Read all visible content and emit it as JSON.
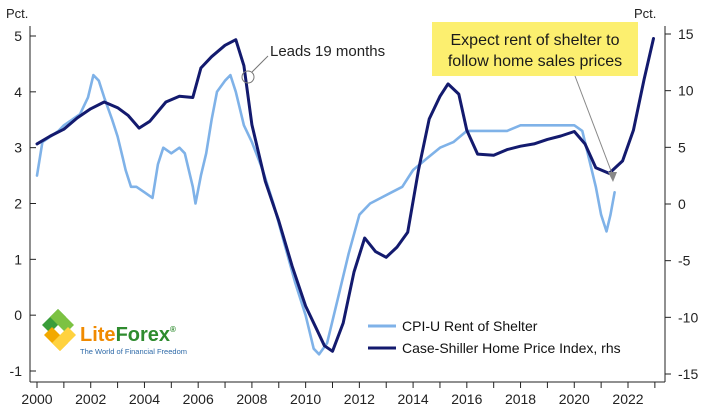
{
  "chart_data": {
    "type": "line",
    "left_axis": {
      "unit_label": "Pct.",
      "range": [
        -1.1,
        5.2
      ],
      "ticks": [
        -1,
        0,
        1,
        2,
        3,
        4,
        5
      ]
    },
    "right_axis": {
      "unit_label": "Pct.",
      "range": [
        -15.5,
        16
      ],
      "ticks": [
        -15,
        -10,
        -5,
        0,
        5,
        10,
        15
      ]
    },
    "x_axis": {
      "range": [
        2000,
        2023
      ],
      "ticks": [
        2000,
        2002,
        2004,
        2006,
        2008,
        2010,
        2012,
        2014,
        2016,
        2018,
        2020,
        2022
      ]
    },
    "series": [
      {
        "name": "CPI-U Rent of Shelter",
        "axis": "left",
        "color": "#7fb2e8",
        "points": [
          [
            2000.0,
            2.5
          ],
          [
            2000.2,
            3.1
          ],
          [
            2000.5,
            3.2
          ],
          [
            2000.8,
            3.3
          ],
          [
            2001.0,
            3.4
          ],
          [
            2001.3,
            3.5
          ],
          [
            2001.6,
            3.6
          ],
          [
            2001.9,
            3.9
          ],
          [
            2002.0,
            4.1
          ],
          [
            2002.1,
            4.3
          ],
          [
            2002.3,
            4.2
          ],
          [
            2002.5,
            3.9
          ],
          [
            2002.8,
            3.5
          ],
          [
            2003.0,
            3.2
          ],
          [
            2003.2,
            2.8
          ],
          [
            2003.3,
            2.6
          ],
          [
            2003.5,
            2.3
          ],
          [
            2003.7,
            2.3
          ],
          [
            2004.0,
            2.2
          ],
          [
            2004.3,
            2.1
          ],
          [
            2004.5,
            2.7
          ],
          [
            2004.7,
            3.0
          ],
          [
            2005.0,
            2.9
          ],
          [
            2005.3,
            3.0
          ],
          [
            2005.5,
            2.9
          ],
          [
            2005.8,
            2.3
          ],
          [
            2005.9,
            2.0
          ],
          [
            2006.1,
            2.5
          ],
          [
            2006.3,
            2.9
          ],
          [
            2006.5,
            3.5
          ],
          [
            2006.7,
            4.0
          ],
          [
            2007.0,
            4.2
          ],
          [
            2007.2,
            4.3
          ],
          [
            2007.4,
            4.0
          ],
          [
            2007.7,
            3.4
          ],
          [
            2008.0,
            3.1
          ],
          [
            2008.4,
            2.6
          ],
          [
            2008.8,
            2.0
          ],
          [
            2009.2,
            1.3
          ],
          [
            2009.6,
            0.6
          ],
          [
            2010.0,
            0.0
          ],
          [
            2010.3,
            -0.6
          ],
          [
            2010.5,
            -0.7
          ],
          [
            2010.8,
            -0.5
          ],
          [
            2011.2,
            0.3
          ],
          [
            2011.6,
            1.1
          ],
          [
            2012.0,
            1.8
          ],
          [
            2012.4,
            2.0
          ],
          [
            2012.8,
            2.1
          ],
          [
            2013.2,
            2.2
          ],
          [
            2013.6,
            2.3
          ],
          [
            2014.0,
            2.6
          ],
          [
            2014.5,
            2.8
          ],
          [
            2015.0,
            3.0
          ],
          [
            2015.5,
            3.1
          ],
          [
            2016.0,
            3.3
          ],
          [
            2016.5,
            3.3
          ],
          [
            2017.0,
            3.3
          ],
          [
            2017.5,
            3.3
          ],
          [
            2018.0,
            3.4
          ],
          [
            2018.5,
            3.4
          ],
          [
            2019.0,
            3.4
          ],
          [
            2019.5,
            3.4
          ],
          [
            2020.0,
            3.4
          ],
          [
            2020.3,
            3.3
          ],
          [
            2020.5,
            2.9
          ],
          [
            2020.8,
            2.3
          ],
          [
            2021.0,
            1.8
          ],
          [
            2021.2,
            1.5
          ],
          [
            2021.35,
            1.8
          ],
          [
            2021.5,
            2.2
          ]
        ]
      },
      {
        "name": "Case-Shiller Home Price Index, rhs",
        "axis": "right",
        "color": "#131a6e",
        "points": [
          [
            2000.0,
            5.3
          ],
          [
            2000.5,
            6.0
          ],
          [
            2001.0,
            6.6
          ],
          [
            2001.5,
            7.6
          ],
          [
            2002.0,
            8.4
          ],
          [
            2002.5,
            9.0
          ],
          [
            2003.0,
            8.5
          ],
          [
            2003.4,
            7.8
          ],
          [
            2003.8,
            6.7
          ],
          [
            2004.2,
            7.3
          ],
          [
            2004.8,
            9.0
          ],
          [
            2005.3,
            9.5
          ],
          [
            2005.8,
            9.4
          ],
          [
            2006.1,
            12.0
          ],
          [
            2006.5,
            13.0
          ],
          [
            2007.0,
            14.0
          ],
          [
            2007.4,
            14.5
          ],
          [
            2007.7,
            12.2
          ],
          [
            2008.0,
            7.0
          ],
          [
            2008.5,
            2.0
          ],
          [
            2009.0,
            -1.5
          ],
          [
            2009.5,
            -5.5
          ],
          [
            2010.0,
            -9.0
          ],
          [
            2010.4,
            -11.0
          ],
          [
            2010.7,
            -12.5
          ],
          [
            2011.0,
            -13.0
          ],
          [
            2011.4,
            -10.5
          ],
          [
            2011.8,
            -6.0
          ],
          [
            2012.2,
            -3.0
          ],
          [
            2012.6,
            -4.2
          ],
          [
            2013.0,
            -4.7
          ],
          [
            2013.4,
            -3.8
          ],
          [
            2013.8,
            -2.5
          ],
          [
            2014.2,
            3.0
          ],
          [
            2014.6,
            7.5
          ],
          [
            2015.0,
            9.5
          ],
          [
            2015.3,
            10.6
          ],
          [
            2015.7,
            9.7
          ],
          [
            2016.0,
            6.5
          ],
          [
            2016.4,
            4.4
          ],
          [
            2017.0,
            4.3
          ],
          [
            2017.5,
            4.8
          ],
          [
            2018.0,
            5.1
          ],
          [
            2018.5,
            5.3
          ],
          [
            2019.0,
            5.7
          ],
          [
            2019.5,
            6.0
          ],
          [
            2020.0,
            6.4
          ],
          [
            2020.4,
            5.3
          ],
          [
            2020.8,
            3.2
          ],
          [
            2021.3,
            2.7
          ],
          [
            2021.8,
            3.8
          ],
          [
            2022.2,
            6.5
          ],
          [
            2022.6,
            11.0
          ],
          [
            2022.95,
            14.6
          ]
        ]
      }
    ],
    "annotations": {
      "leads": "Leads 19 months",
      "callout_lines": [
        "Expect rent of shelter to",
        "follow home sales prices"
      ]
    },
    "legend": {
      "placement": "bottom-right"
    },
    "grid": false
  },
  "watermark": {
    "name": "LiteForex",
    "tagline": "The World of Financial Freedom"
  }
}
